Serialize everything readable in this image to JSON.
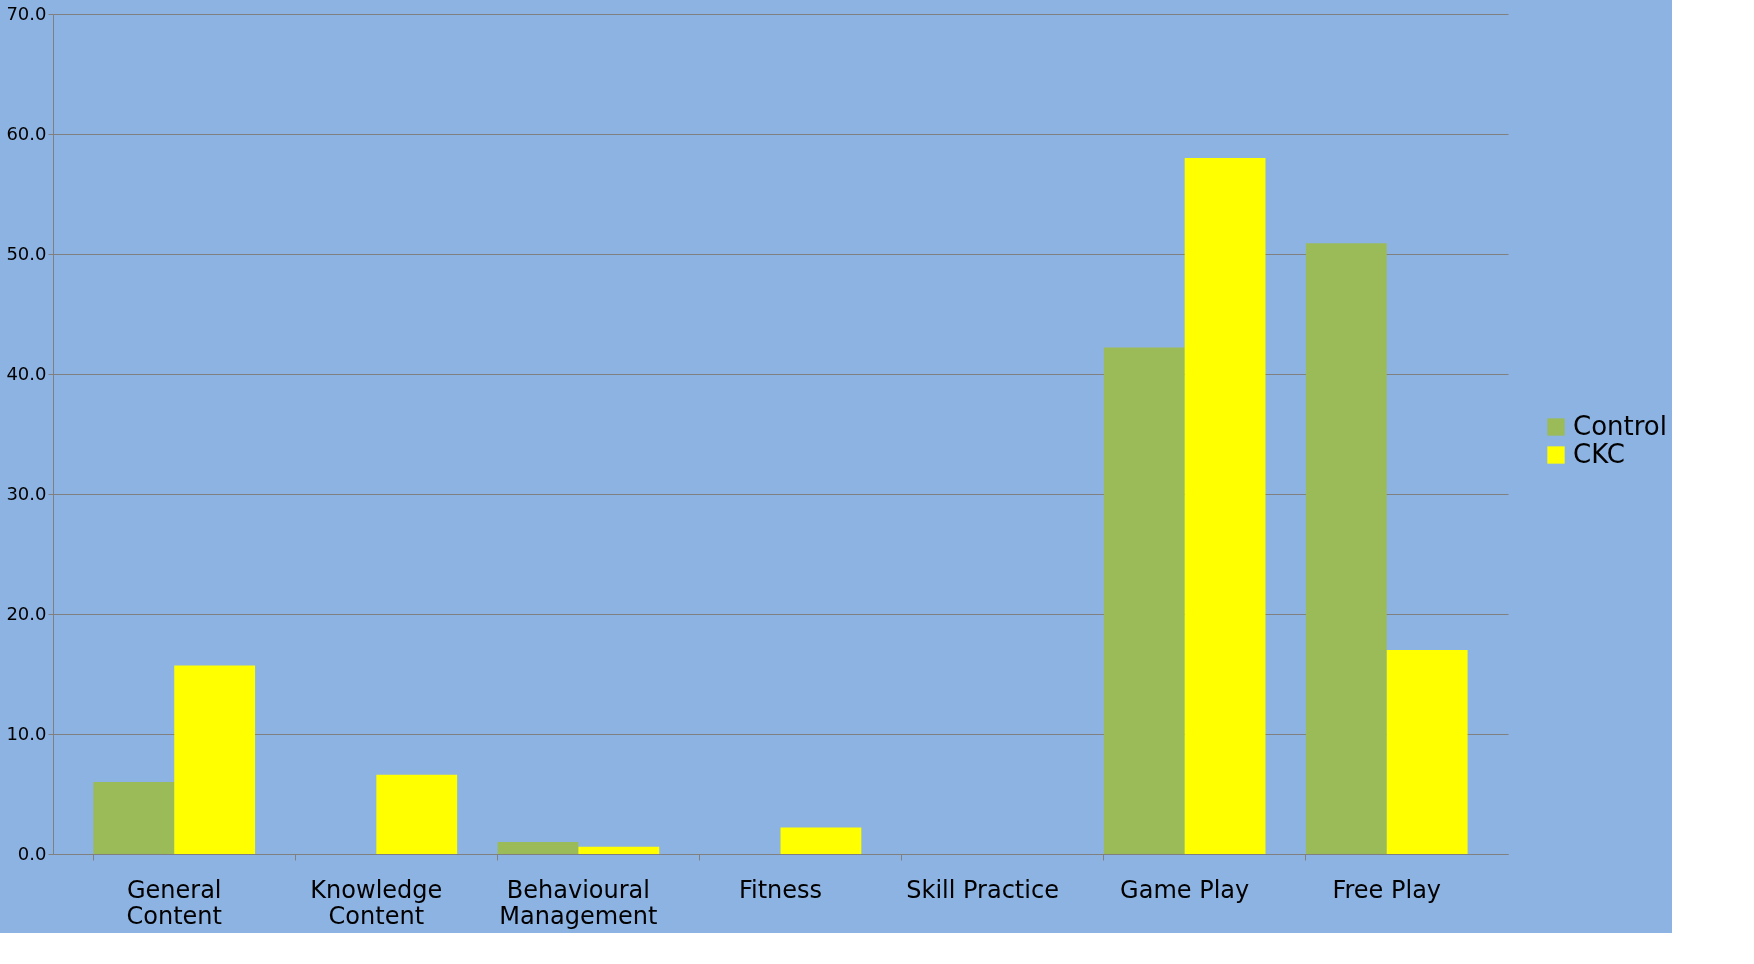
{
  "chart_data": {
    "type": "bar",
    "categories": [
      "General Content",
      "Knowledge Content",
      "Behavioural Management",
      "Fitness",
      "Skill Practice",
      "Game Play",
      "Free Play"
    ],
    "series": [
      {
        "name": "Control",
        "color": "#9bbb59",
        "values": [
          6.0,
          0.0,
          1.0,
          0.0,
          0.0,
          42.2,
          50.9
        ]
      },
      {
        "name": "CKC",
        "color": "#ffff00",
        "values": [
          15.7,
          6.6,
          0.6,
          2.2,
          0.0,
          58.0,
          17.0
        ]
      }
    ],
    "ylim": [
      0,
      70
    ],
    "yticks": [
      {
        "value": 0,
        "label": "0.0"
      },
      {
        "value": 10,
        "label": "10.0"
      },
      {
        "value": 20,
        "label": "20.0"
      },
      {
        "value": 30,
        "label": "30.0"
      },
      {
        "value": 40,
        "label": "40.0"
      },
      {
        "value": 50,
        "label": "50.0"
      },
      {
        "value": 60,
        "label": "60.0"
      },
      {
        "value": 70,
        "label": "70.0"
      }
    ],
    "grid": "y",
    "legend": "right"
  }
}
